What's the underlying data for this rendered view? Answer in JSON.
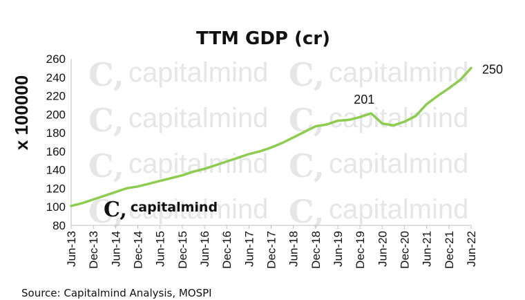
{
  "chart_data": {
    "type": "line",
    "title": "TTM GDP (cr)",
    "ylabel": "x 100000",
    "xlabel": "",
    "ylim": [
      80,
      260
    ],
    "yticks": [
      80,
      100,
      120,
      140,
      160,
      180,
      200,
      220,
      240,
      260
    ],
    "x_tick_labels": [
      "Jun-13",
      "Dec-13",
      "Jun-14",
      "Dec-14",
      "Jun-15",
      "Dec-15",
      "Jun-16",
      "Dec-16",
      "Jun-17",
      "Dec-17",
      "Jun-18",
      "Dec-18",
      "Jun-19",
      "Dec-19",
      "Jun-20",
      "Dec-20",
      "Jun-21",
      "Dec-21",
      "Jun-22"
    ],
    "grid": false,
    "line_color": "#8ccc4e",
    "x": [
      "Jun-13",
      "Sep-13",
      "Dec-13",
      "Mar-14",
      "Jun-14",
      "Sep-14",
      "Dec-14",
      "Mar-15",
      "Jun-15",
      "Sep-15",
      "Dec-15",
      "Mar-16",
      "Jun-16",
      "Sep-16",
      "Dec-16",
      "Mar-17",
      "Jun-17",
      "Sep-17",
      "Dec-17",
      "Mar-18",
      "Jun-18",
      "Sep-18",
      "Dec-18",
      "Mar-19",
      "Jun-19",
      "Sep-19",
      "Dec-19",
      "Mar-20",
      "Jun-20",
      "Sep-20",
      "Dec-20",
      "Mar-21",
      "Jun-21",
      "Sep-21",
      "Dec-21",
      "Mar-22",
      "Jun-22"
    ],
    "values": [
      101,
      104,
      108,
      112,
      116,
      120,
      122,
      125,
      128,
      131,
      134,
      138,
      141,
      145,
      149,
      153,
      157,
      160,
      164,
      169,
      175,
      181,
      187,
      189,
      193,
      194,
      197,
      201,
      190,
      188,
      192,
      198,
      211,
      220,
      228,
      237,
      250
    ],
    "data_labels": [
      {
        "x": "Mar-20",
        "text": "201"
      },
      {
        "x": "Jun-22",
        "text": "250"
      }
    ]
  },
  "source": "Source: Capitalmind Analysis, MOSPI",
  "logo": {
    "mark": "C,",
    "text": "capitalmind"
  },
  "watermark": {
    "mark": "C,",
    "text": "capitalmind"
  }
}
